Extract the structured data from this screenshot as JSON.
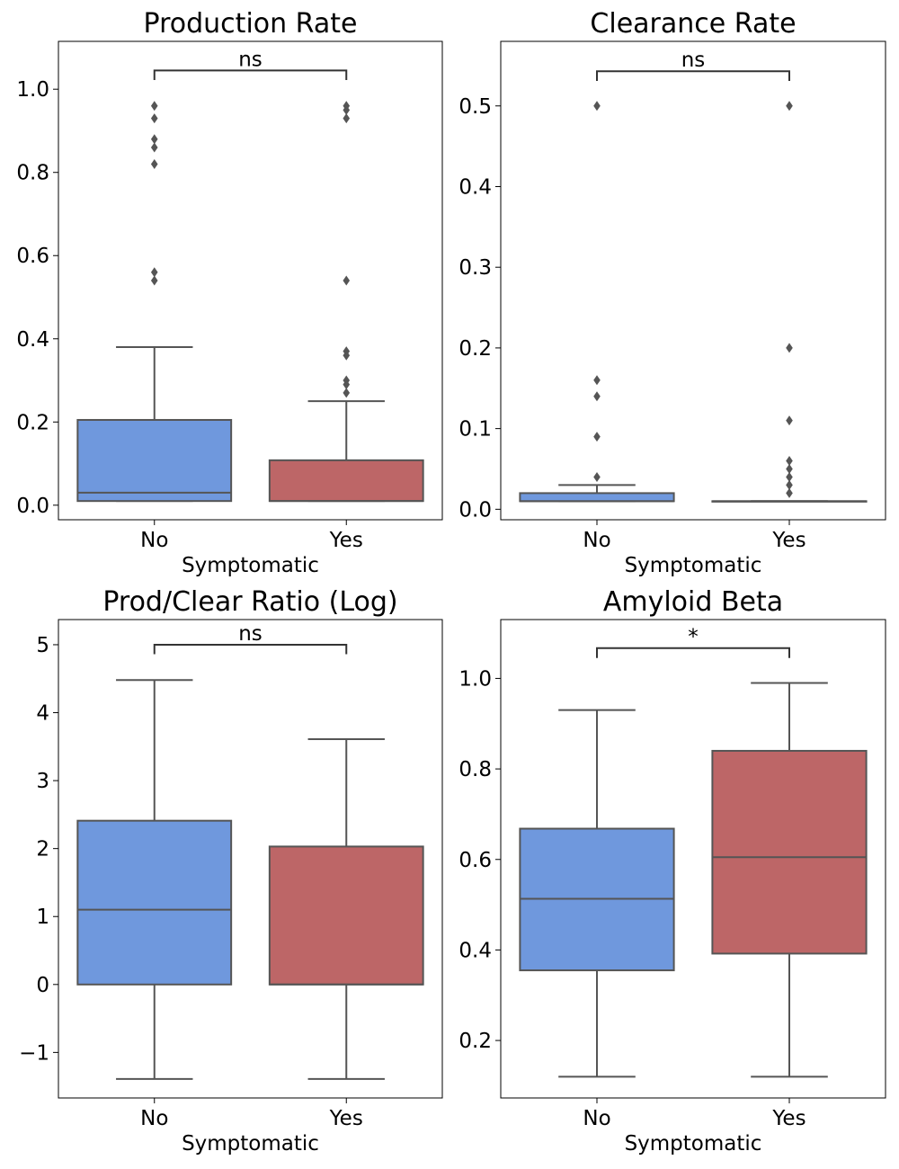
{
  "chart_data": [
    {
      "type": "box",
      "title": "Production Rate",
      "xlabel": "Symptomatic",
      "ylabel": "",
      "ylim": [
        -0.035,
        1.115
      ],
      "yticks": [
        0.0,
        0.2,
        0.4,
        0.6,
        0.8,
        1.0
      ],
      "ytick_labels": [
        "0.0",
        "0.2",
        "0.4",
        "0.6",
        "0.8",
        "1.0"
      ],
      "categories": [
        "No",
        "Yes"
      ],
      "boxes": [
        {
          "category": "No",
          "whisker_low": 0.01,
          "q1": 0.01,
          "median": 0.03,
          "q3": 0.205,
          "whisker_high": 0.38,
          "outliers": [
            0.96,
            0.93,
            0.88,
            0.86,
            0.82,
            0.56,
            0.54
          ]
        },
        {
          "category": "Yes",
          "whisker_low": 0.01,
          "q1": 0.01,
          "median": 0.01,
          "q3": 0.108,
          "whisker_high": 0.25,
          "outliers": [
            0.96,
            0.95,
            0.93,
            0.54,
            0.37,
            0.36,
            0.3,
            0.29,
            0.27
          ]
        }
      ],
      "significance": {
        "label": "ns",
        "y": 1.045,
        "drop": 0.023
      }
    },
    {
      "type": "box",
      "title": "Clearance Rate",
      "xlabel": "Symptomatic",
      "ylabel": "",
      "ylim": [
        -0.013,
        0.58
      ],
      "yticks": [
        0.0,
        0.1,
        0.2,
        0.3,
        0.4,
        0.5
      ],
      "ytick_labels": [
        "0.0",
        "0.1",
        "0.2",
        "0.3",
        "0.4",
        "0.5"
      ],
      "categories": [
        "No",
        "Yes"
      ],
      "boxes": [
        {
          "category": "No",
          "whisker_low": 0.01,
          "q1": 0.01,
          "median": 0.01,
          "q3": 0.02,
          "whisker_high": 0.03,
          "outliers": [
            0.5,
            0.16,
            0.14,
            0.09,
            0.04
          ]
        },
        {
          "category": "Yes",
          "whisker_low": 0.01,
          "q1": 0.01,
          "median": 0.01,
          "q3": 0.01,
          "whisker_high": 0.01,
          "outliers": [
            0.5,
            0.2,
            0.11,
            0.06,
            0.05,
            0.04,
            0.03,
            0.02
          ]
        }
      ],
      "significance": {
        "label": "ns",
        "y": 0.543,
        "drop": 0.012
      }
    },
    {
      "type": "box",
      "title": "Prod/Clear Ratio (Log)",
      "xlabel": "Symptomatic",
      "ylabel": "",
      "ylim": [
        -1.67,
        5.37
      ],
      "yticks": [
        -1,
        0,
        1,
        2,
        3,
        4,
        5
      ],
      "ytick_labels": [
        "−1",
        "0",
        "1",
        "2",
        "3",
        "4",
        "5"
      ],
      "categories": [
        "No",
        "Yes"
      ],
      "boxes": [
        {
          "category": "No",
          "whisker_low": -1.39,
          "q1": 0.0,
          "median": 1.1,
          "q3": 2.41,
          "whisker_high": 4.48,
          "outliers": []
        },
        {
          "category": "Yes",
          "whisker_low": -1.39,
          "q1": 0.0,
          "median": 0.0,
          "q3": 2.03,
          "whisker_high": 3.61,
          "outliers": []
        }
      ],
      "significance": {
        "label": "ns",
        "y": 5.0,
        "drop": 0.14
      }
    },
    {
      "type": "box",
      "title": "Amyloid Beta",
      "xlabel": "Symptomatic",
      "ylabel": "",
      "ylim": [
        0.073,
        1.13
      ],
      "yticks": [
        0.2,
        0.4,
        0.6,
        0.8,
        1.0
      ],
      "ytick_labels": [
        "0.2",
        "0.4",
        "0.6",
        "0.8",
        "1.0"
      ],
      "categories": [
        "No",
        "Yes"
      ],
      "boxes": [
        {
          "category": "No",
          "whisker_low": 0.12,
          "q1": 0.355,
          "median": 0.513,
          "q3": 0.668,
          "whisker_high": 0.93,
          "outliers": []
        },
        {
          "category": "Yes",
          "whisker_low": 0.12,
          "q1": 0.392,
          "median": 0.605,
          "q3": 0.84,
          "whisker_high": 0.99,
          "outliers": []
        }
      ],
      "significance": {
        "label": "*",
        "y": 1.067,
        "drop": 0.022
      }
    }
  ],
  "colors": {
    "No": "#6f98dd",
    "Yes": "#bd6667",
    "line": "#555555"
  }
}
